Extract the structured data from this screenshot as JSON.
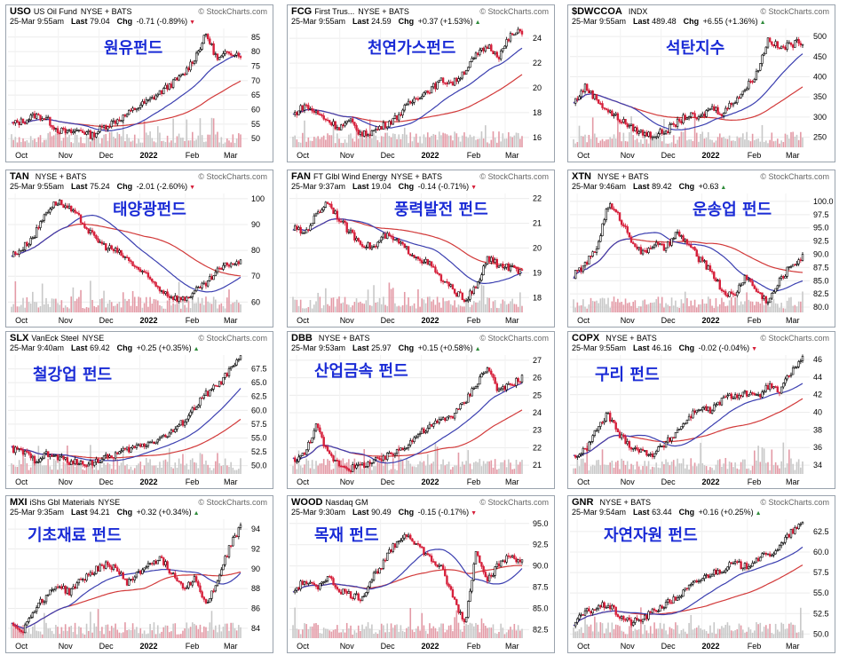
{
  "source": "StockCharts.com",
  "colors": {
    "up": "#000000",
    "down": "#d61f3a",
    "ma_short": "#3b3fb0",
    "ma_long": "#d23a3a",
    "vol": "#c8c8c8",
    "vol_down": "#e39aa6",
    "label": "#1a2bd6"
  },
  "x_ticks": [
    "Oct",
    "Nov",
    "Dec",
    "2022",
    "Feb",
    "Mar"
  ],
  "chart_data": [
    {
      "type": "line",
      "symbol": "USO",
      "name": "US Oil Fund",
      "exchange": "NYSE + BATS",
      "datetime": "25-Mar 9:55am",
      "last": "79.04",
      "chg": "-0.71 (-0.89%)",
      "dir": "down",
      "korean_label": "원유펀드",
      "y_ticks": [
        "85",
        "80",
        "75",
        "70",
        "65",
        "60",
        "55",
        "50"
      ],
      "ylim": [
        47,
        88
      ],
      "close": [
        55,
        56,
        58,
        57,
        53,
        52,
        53,
        51,
        54,
        56,
        58,
        61,
        63,
        66,
        69,
        72,
        78,
        86,
        77,
        80,
        79
      ]
    },
    {
      "type": "line",
      "symbol": "FCG",
      "name": "First Trus...",
      "exchange": "NYSE + BATS",
      "datetime": "25-Mar 9:55am",
      "last": "24.59",
      "chg": "+0.37 (+1.53%)",
      "dir": "up",
      "korean_label": "천연가스펀드",
      "y_ticks": [
        "24",
        "22",
        "20",
        "18",
        "16"
      ],
      "ylim": [
        15.2,
        24.8
      ],
      "close": [
        17.8,
        18.6,
        18.0,
        17.4,
        16.8,
        17.3,
        16.2,
        16.5,
        17.0,
        17.6,
        18.6,
        19.4,
        19.9,
        20.6,
        20.4,
        21.4,
        22.6,
        23.4,
        22.6,
        24.2,
        24.6
      ]
    },
    {
      "type": "line",
      "symbol": "$DWCCOA",
      "name": "",
      "exchange": "INDX",
      "datetime": "25-Mar 9:55am",
      "last": "489.48",
      "chg": "+6.55 (+1.36%)",
      "dir": "up",
      "korean_label": "석탄지수",
      "y_ticks": [
        "500",
        "450",
        "400",
        "350",
        "300",
        "250"
      ],
      "ylim": [
        225,
        520
      ],
      "close": [
        335,
        375,
        345,
        315,
        295,
        275,
        260,
        255,
        265,
        285,
        305,
        295,
        325,
        310,
        340,
        370,
        410,
        495,
        470,
        480,
        489
      ]
    },
    {
      "type": "line",
      "symbol": "TAN",
      "name": "",
      "exchange": "NYSE + BATS",
      "datetime": "25-Mar 9:55am",
      "last": "75.24",
      "chg": "-2.01 (-2.60%)",
      "dir": "down",
      "korean_label": "태양광펀드",
      "y_ticks": [
        "100",
        "90",
        "80",
        "70",
        "60"
      ],
      "ylim": [
        56,
        102
      ],
      "close": [
        78,
        81,
        86,
        95,
        99,
        96,
        92,
        86,
        82,
        80,
        77,
        73,
        69,
        65,
        62,
        61,
        64,
        67,
        72,
        75,
        75
      ]
    },
    {
      "type": "line",
      "symbol": "FAN",
      "name": "FT Glbl Wind Energy",
      "exchange": "NYSE + BATS",
      "datetime": "25-Mar 9:37am",
      "last": "19.04",
      "chg": "-0.14 (-0.71%)",
      "dir": "down",
      "korean_label": "풍력발전 펀드",
      "y_ticks": [
        "22",
        "21",
        "20",
        "19",
        "18"
      ],
      "ylim": [
        17.4,
        22.2
      ],
      "close": [
        20.8,
        20.6,
        21.3,
        21.9,
        21.2,
        20.6,
        20.2,
        20.0,
        20.5,
        20.3,
        19.9,
        19.6,
        19.3,
        18.7,
        18.3,
        17.9,
        18.4,
        19.6,
        19.3,
        19.2,
        19.0
      ]
    },
    {
      "type": "line",
      "symbol": "XTN",
      "name": "",
      "exchange": "NYSE + BATS",
      "datetime": "25-Mar 9:46am",
      "last": "89.42",
      "chg": "+0.63",
      "dir": "up",
      "korean_label": "운송업 펀드",
      "y_ticks": [
        "100.0",
        "97.5",
        "95.0",
        "92.5",
        "90.0",
        "87.5",
        "85.0",
        "82.5",
        "80.0"
      ],
      "ylim": [
        79,
        101.5
      ],
      "close": [
        86,
        88,
        91,
        99.5,
        97,
        93,
        90,
        92,
        91,
        94,
        92,
        89,
        87,
        83,
        82,
        86,
        83,
        81,
        85,
        88,
        89.4
      ]
    },
    {
      "type": "line",
      "symbol": "SLX",
      "name": "VanEck Steel",
      "exchange": "NYSE",
      "datetime": "25-Mar 9:40am",
      "last": "69.42",
      "chg": "+0.25 (+0.35%)",
      "dir": "up",
      "korean_label": "철강업 펀드",
      "y_ticks": [
        "67.5",
        "65.0",
        "62.5",
        "60.0",
        "57.5",
        "55.0",
        "52.5",
        "50.0"
      ],
      "ylim": [
        48.5,
        70
      ],
      "close": [
        53,
        52.5,
        51,
        52,
        51.5,
        50.8,
        50.3,
        50.6,
        51.2,
        52,
        52.8,
        53.5,
        54.2,
        55,
        56,
        58,
        60.5,
        63,
        64.5,
        67,
        69.4
      ]
    },
    {
      "type": "line",
      "symbol": "DBB",
      "name": "",
      "exchange": "NYSE + BATS",
      "datetime": "25-Mar 9:53am",
      "last": "25.97",
      "chg": "+0.15 (+0.58%)",
      "dir": "up",
      "korean_label": "산업금속 펀드",
      "y_ticks": [
        "27",
        "26",
        "25",
        "24",
        "23",
        "22",
        "21"
      ],
      "ylim": [
        20.5,
        27.3
      ],
      "close": [
        21.3,
        21.6,
        23.3,
        21.7,
        21.1,
        20.8,
        21.0,
        21.2,
        21.4,
        21.8,
        22.2,
        22.8,
        23.2,
        23.6,
        23.9,
        24.6,
        25.7,
        26.6,
        25.2,
        25.6,
        26.0
      ]
    },
    {
      "type": "line",
      "symbol": "COPX",
      "name": "",
      "exchange": "NYSE + BATS",
      "datetime": "25-Mar 9:55am",
      "last": "46.16",
      "chg": "-0.02 (-0.04%)",
      "dir": "down",
      "korean_label": "구리 펀드",
      "y_ticks": [
        "46",
        "44",
        "42",
        "40",
        "38",
        "36",
        "34"
      ],
      "ylim": [
        33,
        46.5
      ],
      "close": [
        35,
        35.6,
        38,
        39.8,
        37.4,
        36.2,
        35.5,
        35.3,
        36.4,
        37.8,
        39.3,
        40.6,
        40.1,
        41.5,
        41.9,
        42.2,
        41.6,
        43,
        42.3,
        44.6,
        46.1
      ]
    },
    {
      "type": "line",
      "symbol": "MXI",
      "name": "iShs Gbl Materials",
      "exchange": "NYSE",
      "datetime": "25-Mar 9:35am",
      "last": "94.21",
      "chg": "+0.32 (+0.34%)",
      "dir": "up",
      "korean_label": "기초재료 펀드",
      "y_ticks": [
        "94",
        "92",
        "90",
        "88",
        "86",
        "84"
      ],
      "ylim": [
        83,
        95
      ],
      "close": [
        84.5,
        83.8,
        86,
        87.2,
        88.4,
        87.6,
        88.8,
        89.6,
        90.4,
        90.2,
        88.6,
        89.4,
        90.6,
        91,
        89.6,
        88.2,
        89,
        86.4,
        88.6,
        92.2,
        94.2
      ]
    },
    {
      "type": "line",
      "symbol": "WOOD",
      "name": "Nasdaq GM",
      "exchange": "",
      "datetime": "25-Mar 9:30am",
      "last": "90.49",
      "chg": "-0.15 (-0.17%)",
      "dir": "down",
      "korean_label": "목재 펀드",
      "y_ticks": [
        "95.0",
        "92.5",
        "90.0",
        "87.5",
        "85.0",
        "82.5"
      ],
      "ylim": [
        81.5,
        95.5
      ],
      "close": [
        87,
        88.2,
        87.4,
        88.8,
        87.2,
        86.6,
        86.2,
        88.8,
        90.6,
        92.8,
        93.8,
        92.3,
        90.8,
        89.6,
        86.2,
        83.2,
        91.8,
        88.4,
        90.2,
        91.2,
        90.5
      ]
    },
    {
      "type": "line",
      "symbol": "GNR",
      "name": "",
      "exchange": "NYSE + BATS",
      "datetime": "25-Mar 9:54am",
      "last": "63.44",
      "chg": "+0.16 (+0.25%)",
      "dir": "up",
      "korean_label": "자연자원 펀드",
      "y_ticks": [
        "62.5",
        "60.0",
        "57.5",
        "55.0",
        "52.5",
        "50.0"
      ],
      "ylim": [
        49.5,
        64
      ],
      "close": [
        51.2,
        52.6,
        53.2,
        53.6,
        52.2,
        51.4,
        51.8,
        52.8,
        53.6,
        54.4,
        55.6,
        56.6,
        57.4,
        57.9,
        58.6,
        58.2,
        59.2,
        59.6,
        60.6,
        62.4,
        63.4
      ]
    }
  ]
}
